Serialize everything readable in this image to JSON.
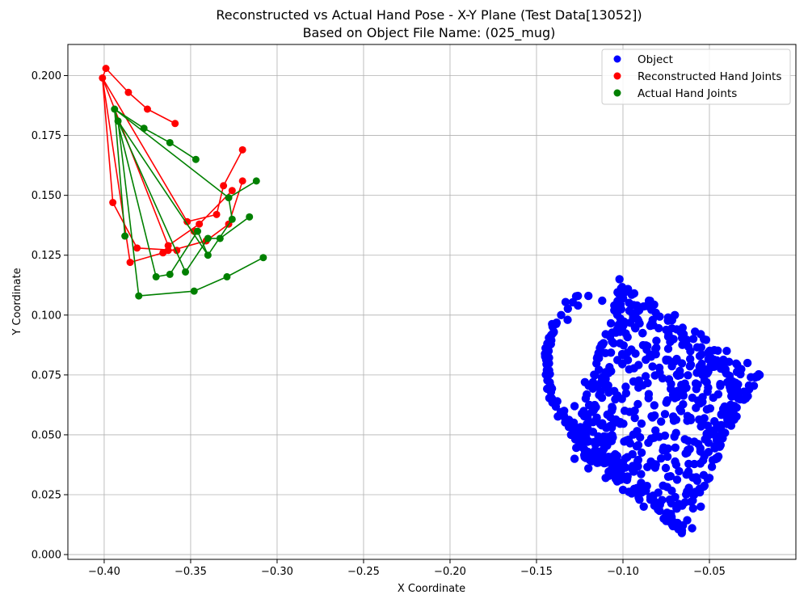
{
  "chart_data": {
    "type": "scatter",
    "title": "Reconstructed vs Actual Hand Pose - X-Y Plane (Test Data[13052])",
    "subtitle": "Based on Object File Name: (025_mug)",
    "xlabel": "X Coordinate",
    "ylabel": "Y Coordinate",
    "xlim": [
      -0.421,
      0.0
    ],
    "ylim": [
      -0.002,
      0.213
    ],
    "xticks": [
      -0.4,
      -0.35,
      -0.3,
      -0.25,
      -0.2,
      -0.15,
      -0.1,
      -0.05
    ],
    "xtick_labels": [
      "−0.40",
      "−0.35",
      "−0.30",
      "−0.25",
      "−0.20",
      "−0.15",
      "−0.10",
      "−0.05"
    ],
    "yticks": [
      0.0,
      0.025,
      0.05,
      0.075,
      0.1,
      0.125,
      0.15,
      0.175,
      0.2
    ],
    "ytick_labels": [
      "0.000",
      "0.025",
      "0.050",
      "0.075",
      "0.100",
      "0.125",
      "0.150",
      "0.175",
      "0.200"
    ],
    "grid": true,
    "legend_position": "top-right",
    "colors": {
      "object": "#0000ff",
      "reconstructed": "#ff0000",
      "actual": "#008000",
      "grid": "#b0b0b0"
    },
    "series": [
      {
        "name": "Object",
        "kind": "point-cloud",
        "region_samples": {
          "mug_body_outline": [
            [
              -0.102,
              0.115
            ],
            [
              -0.085,
              0.106
            ],
            [
              -0.07,
              0.1
            ],
            [
              -0.055,
              0.092
            ],
            [
              -0.04,
              0.085
            ],
            [
              -0.028,
              0.08
            ],
            [
              -0.021,
              0.075
            ],
            [
              -0.03,
              0.068
            ],
            [
              -0.038,
              0.058
            ],
            [
              -0.044,
              0.045
            ],
            [
              -0.05,
              0.032
            ],
            [
              -0.055,
              0.02
            ],
            [
              -0.06,
              0.011
            ],
            [
              -0.066,
              0.009
            ],
            [
              -0.075,
              0.014
            ],
            [
              -0.088,
              0.02
            ],
            [
              -0.1,
              0.027
            ],
            [
              -0.11,
              0.032
            ],
            [
              -0.12,
              0.036
            ],
            [
              -0.128,
              0.04
            ],
            [
              -0.13,
              0.05
            ],
            [
              -0.128,
              0.062
            ],
            [
              -0.122,
              0.072
            ],
            [
              -0.115,
              0.082
            ],
            [
              -0.11,
              0.092
            ],
            [
              -0.105,
              0.102
            ]
          ],
          "handle_outline": [
            [
              -0.132,
              0.098
            ],
            [
              -0.126,
              0.104
            ],
            [
              -0.12,
              0.108
            ],
            [
              -0.112,
              0.106
            ],
            [
              -0.105,
              0.104
            ],
            [
              -0.14,
              0.093
            ],
            [
              -0.143,
              0.085
            ],
            [
              -0.144,
              0.077
            ],
            [
              -0.142,
              0.07
            ],
            [
              -0.138,
              0.064
            ],
            [
              -0.134,
              0.06
            ]
          ]
        }
      },
      {
        "name": "Reconstructed Hand Joints",
        "points": [
          [
            -0.401,
            0.199
          ],
          [
            -0.399,
            0.203
          ],
          [
            -0.386,
            0.193
          ],
          [
            -0.375,
            0.186
          ],
          [
            -0.359,
            0.18
          ],
          [
            -0.395,
            0.147
          ],
          [
            -0.381,
            0.128
          ],
          [
            -0.363,
            0.127
          ],
          [
            -0.358,
            0.127
          ],
          [
            -0.385,
            0.122
          ],
          [
            -0.366,
            0.126
          ],
          [
            -0.341,
            0.131
          ],
          [
            -0.328,
            0.138
          ],
          [
            -0.32,
            0.156
          ],
          [
            -0.363,
            0.129
          ],
          [
            -0.345,
            0.138
          ],
          [
            -0.326,
            0.152
          ],
          [
            -0.352,
            0.139
          ],
          [
            -0.335,
            0.142
          ],
          [
            -0.331,
            0.154
          ],
          [
            -0.32,
            0.169
          ],
          [
            -0.348,
            0.135
          ]
        ],
        "edges": [
          [
            0,
            1
          ],
          [
            1,
            2
          ],
          [
            2,
            3
          ],
          [
            3,
            4
          ],
          [
            0,
            5
          ],
          [
            5,
            6
          ],
          [
            6,
            8
          ],
          [
            0,
            9
          ],
          [
            9,
            10
          ],
          [
            10,
            11
          ],
          [
            11,
            12
          ],
          [
            12,
            13
          ],
          [
            0,
            14
          ],
          [
            14,
            15
          ],
          [
            15,
            16
          ],
          [
            0,
            17
          ],
          [
            17,
            18
          ],
          [
            18,
            19
          ],
          [
            19,
            20
          ]
        ]
      },
      {
        "name": "Actual Hand Joints",
        "points": [
          [
            -0.394,
            0.186
          ],
          [
            -0.392,
            0.181
          ],
          [
            -0.377,
            0.178
          ],
          [
            -0.362,
            0.172
          ],
          [
            -0.347,
            0.165
          ],
          [
            -0.388,
            0.133
          ],
          [
            -0.37,
            0.116
          ],
          [
            -0.362,
            0.117
          ],
          [
            -0.353,
            0.118
          ],
          [
            -0.38,
            0.108
          ],
          [
            -0.348,
            0.11
          ],
          [
            -0.329,
            0.116
          ],
          [
            -0.308,
            0.124
          ],
          [
            -0.346,
            0.135
          ],
          [
            -0.34,
            0.125
          ],
          [
            -0.333,
            0.132
          ],
          [
            -0.316,
            0.141
          ],
          [
            -0.34,
            0.132
          ],
          [
            -0.326,
            0.14
          ],
          [
            -0.328,
            0.149
          ],
          [
            -0.312,
            0.156
          ]
        ],
        "edges": [
          [
            0,
            1
          ],
          [
            0,
            2
          ],
          [
            2,
            3
          ],
          [
            3,
            4
          ],
          [
            0,
            5
          ],
          [
            0,
            6
          ],
          [
            6,
            7
          ],
          [
            7,
            13
          ],
          [
            13,
            14
          ],
          [
            1,
            9
          ],
          [
            9,
            10
          ],
          [
            10,
            11
          ],
          [
            11,
            12
          ],
          [
            1,
            8
          ],
          [
            8,
            17
          ],
          [
            17,
            15
          ],
          [
            15,
            16
          ],
          [
            0,
            19
          ],
          [
            19,
            20
          ],
          [
            1,
            14
          ],
          [
            14,
            18
          ],
          [
            18,
            19
          ]
        ]
      }
    ]
  }
}
